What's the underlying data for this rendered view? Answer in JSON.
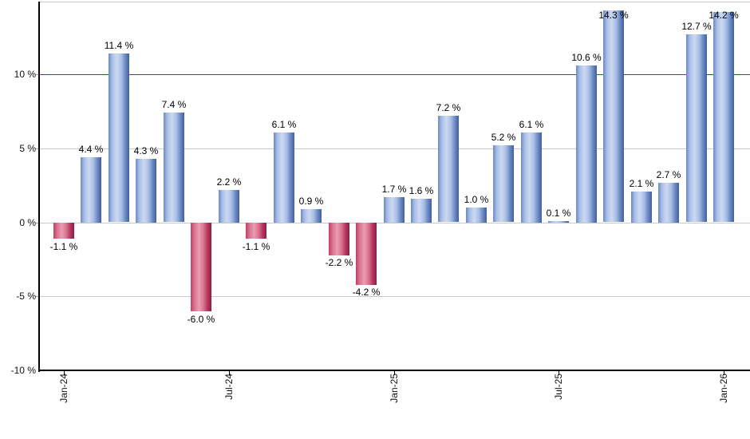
{
  "chart_data": {
    "type": "bar",
    "title": "",
    "unit": "%",
    "values": [
      -1.1,
      4.4,
      11.4,
      4.3,
      7.4,
      -6.0,
      2.2,
      -1.1,
      6.1,
      0.9,
      -2.2,
      -4.2,
      1.7,
      1.6,
      7.2,
      1.0,
      5.2,
      6.1,
      0.1,
      10.6,
      14.3,
      2.1,
      2.7,
      12.7,
      14.2
    ],
    "value_labels": [
      "-1.1 %",
      "4.4 %",
      "11.4 %",
      "4.3 %",
      "7.4 %",
      "-6.0 %",
      "2.2 %",
      "-1.1 %",
      "6.1 %",
      "0.9 %",
      "-2.2 %",
      "-4.2 %",
      "1.7 %",
      "1.6 %",
      "7.2 %",
      "1.0 %",
      "5.2 %",
      "6.1 %",
      "0.1 %",
      "10.6 %",
      "14.3 %",
      "2.1 %",
      "2.7 %",
      "12.7 %",
      "14.2 %"
    ],
    "x_tick_labels": [
      {
        "index": 0,
        "label": "Jan-24"
      },
      {
        "index": 6,
        "label": "Jul-24"
      },
      {
        "index": 12,
        "label": "Jan-25"
      },
      {
        "index": 18,
        "label": "Jul-25"
      },
      {
        "index": 24,
        "label": "Jan-26"
      }
    ],
    "y_ticks": [
      {
        "value": 10,
        "label": "10 %"
      },
      {
        "value": 5,
        "label": "5 %"
      },
      {
        "value": 0,
        "label": "0 %"
      },
      {
        "value": -5,
        "label": "-5 %"
      },
      {
        "value": -10,
        "label": "-10 %"
      }
    ],
    "grid_values": [
      5,
      0,
      -5
    ],
    "ylim": [
      -10,
      14.92
    ],
    "reference_line": {
      "value": 10,
      "color": "#008000"
    },
    "colors": {
      "positive_bar": "#6d89c4",
      "negative_bar": "#c23e66",
      "grid": "#c9c9c9",
      "axis": "#000000",
      "reference": "#008000",
      "background": "#ffffff"
    },
    "legend": []
  }
}
